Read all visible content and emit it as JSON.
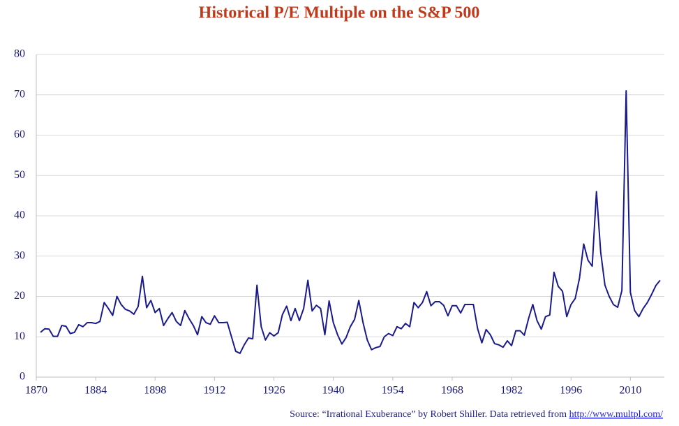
{
  "chart_data": {
    "type": "line",
    "title": "Historical P/E Multiple on the S&P 500",
    "source": "Source: “Irrational Exuberance” by Robert Shiller. Data retrieved from ",
    "source_link": "http://www.multpl.com/",
    "x": [
      1871,
      1872,
      1873,
      1874,
      1875,
      1876,
      1877,
      1878,
      1879,
      1880,
      1881,
      1882,
      1883,
      1884,
      1885,
      1886,
      1887,
      1888,
      1889,
      1890,
      1891,
      1892,
      1893,
      1894,
      1895,
      1896,
      1897,
      1898,
      1899,
      1900,
      1901,
      1902,
      1903,
      1904,
      1905,
      1906,
      1907,
      1908,
      1909,
      1910,
      1911,
      1912,
      1913,
      1914,
      1915,
      1916,
      1917,
      1918,
      1919,
      1920,
      1921,
      1922,
      1923,
      1924,
      1925,
      1926,
      1927,
      1928,
      1929,
      1930,
      1931,
      1932,
      1933,
      1934,
      1935,
      1936,
      1937,
      1938,
      1939,
      1940,
      1941,
      1942,
      1943,
      1944,
      1945,
      1946,
      1947,
      1948,
      1949,
      1950,
      1951,
      1952,
      1953,
      1954,
      1955,
      1956,
      1957,
      1958,
      1959,
      1960,
      1961,
      1962,
      1963,
      1964,
      1965,
      1966,
      1967,
      1968,
      1969,
      1970,
      1971,
      1972,
      1973,
      1974,
      1975,
      1976,
      1977,
      1978,
      1979,
      1980,
      1981,
      1982,
      1983,
      1984,
      1985,
      1986,
      1987,
      1988,
      1989,
      1990,
      1991,
      1992,
      1993,
      1994,
      1995,
      1996,
      1997,
      1998,
      1999,
      2000,
      2001,
      2002,
      2003,
      2004,
      2005,
      2006,
      2007,
      2008,
      2009,
      2010,
      2011,
      2012,
      2013,
      2014,
      2015,
      2016,
      2017
    ],
    "values": [
      11.1,
      12,
      11.9,
      10.1,
      10.1,
      12.8,
      12.6,
      10.8,
      11.1,
      13,
      12.5,
      13.5,
      13.5,
      13.3,
      13.8,
      18.5,
      17,
      15.3,
      20,
      18,
      16.8,
      16.4,
      15.6,
      17.5,
      25,
      17.2,
      19,
      16,
      17,
      12.8,
      14.5,
      16,
      13.8,
      12.8,
      16.5,
      14.5,
      12.8,
      10.5,
      15,
      13.5,
      13.1,
      15.2,
      13.5,
      13.5,
      13.6,
      10,
      6.4,
      5.9,
      8,
      9.7,
      9.5,
      22.8,
      12.5,
      9.2,
      11,
      10.2,
      11,
      15.5,
      17.6,
      14,
      17,
      14,
      17,
      24,
      16.4,
      17.8,
      17,
      10.5,
      18.9,
      13.5,
      10.5,
      8.2,
      9.8,
      12.5,
      14.3,
      19,
      13.5,
      9.2,
      6.8,
      7.3,
      7.6,
      10,
      10.8,
      10.3,
      12.5,
      12,
      13.3,
      12.5,
      18.5,
      17.2,
      18.5,
      21.2,
      17.7,
      18.7,
      18.7,
      17.8,
      15.2,
      17.7,
      17.7,
      15.9,
      18,
      18,
      18,
      12,
      8.5,
      11.8,
      10.5,
      8.3,
      8,
      7.4,
      9,
      7.8,
      11.5,
      11.5,
      10.4,
      14.5,
      18,
      14,
      11.9,
      15,
      15.4,
      26,
      22.5,
      21.3,
      15,
      18,
      19.5,
      24.5,
      33,
      29,
      27.5,
      46,
      31,
      22.8,
      20,
      18,
      17.3,
      21.5,
      71,
      21,
      16.5,
      15,
      17,
      18.5,
      20.5,
      22.7,
      24
    ],
    "color": "#1a1a8c",
    "xlim": [
      1870,
      2018
    ],
    "xticks": [
      1870,
      1884,
      1898,
      1912,
      1926,
      1940,
      1954,
      1968,
      1982,
      1996,
      2010
    ],
    "ylim": [
      0,
      80
    ],
    "yticks": [
      0,
      10,
      20,
      30,
      40,
      50,
      60,
      70,
      80
    ],
    "grid": true
  }
}
